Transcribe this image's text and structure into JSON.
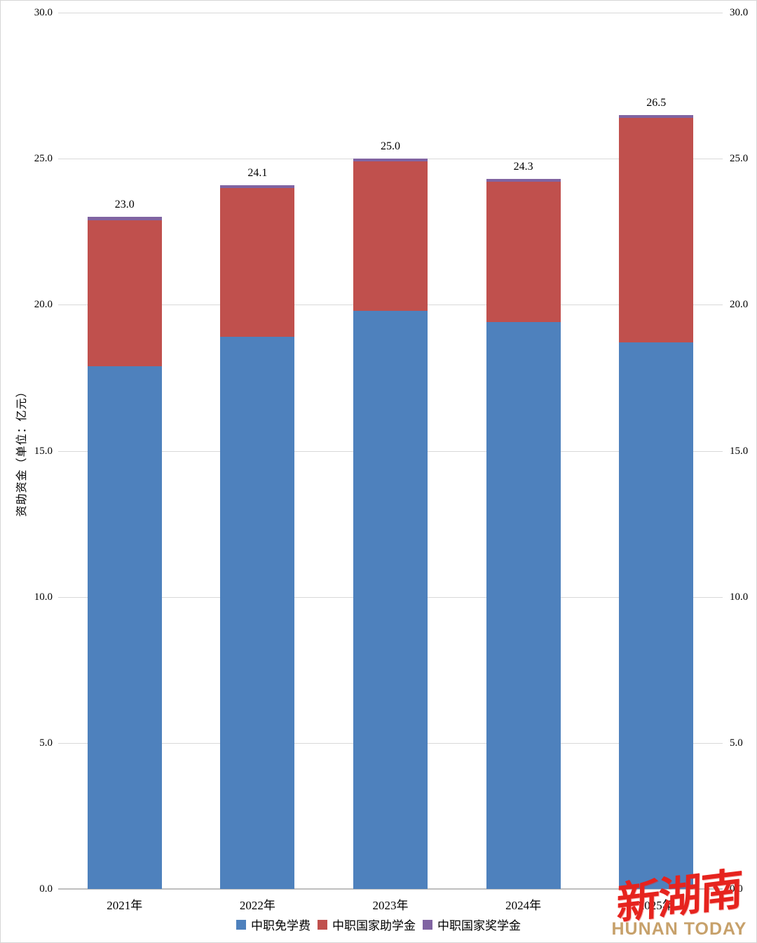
{
  "chart_data": {
    "type": "bar",
    "stacked": true,
    "title": "",
    "xlabel": "",
    "ylabel": "资助资金（单位：亿元）",
    "categories": [
      "2021年",
      "2022年",
      "2023年",
      "2024年",
      "2025年"
    ],
    "series": [
      {
        "name": "中职免学费",
        "color": "#4E81BD",
        "values": [
          17.9,
          18.9,
          19.8,
          19.4,
          18.7
        ]
      },
      {
        "name": "中职国家助学金",
        "color": "#C0504D",
        "values": [
          5.0,
          5.1,
          5.1,
          4.8,
          7.7
        ]
      },
      {
        "name": "中职国家奖学金",
        "color": "#8064A2",
        "values": [
          0.1,
          0.1,
          0.1,
          0.1,
          0.1
        ]
      }
    ],
    "total_labels": [
      "23.0",
      "24.1",
      "25.0",
      "24.3",
      "26.5"
    ],
    "y_ticks": [
      "30.0",
      "25.0",
      "20.0",
      "15.0",
      "10.0",
      "5.0",
      "0.0"
    ],
    "y_tick_values": [
      30,
      25,
      20,
      15,
      10,
      5,
      0
    ],
    "ylim": [
      0,
      30
    ],
    "grid": true,
    "axis_sides": "both",
    "legend_position": "bottom",
    "colors": {
      "gridline": "#d9d9d9",
      "axis_line": "#bfbfbf",
      "text": "#000000"
    }
  },
  "logo": {
    "chinese": "新湖南",
    "english": "HUNAN TODAY",
    "red": "#E6231E",
    "gold": "#C7A16B"
  }
}
